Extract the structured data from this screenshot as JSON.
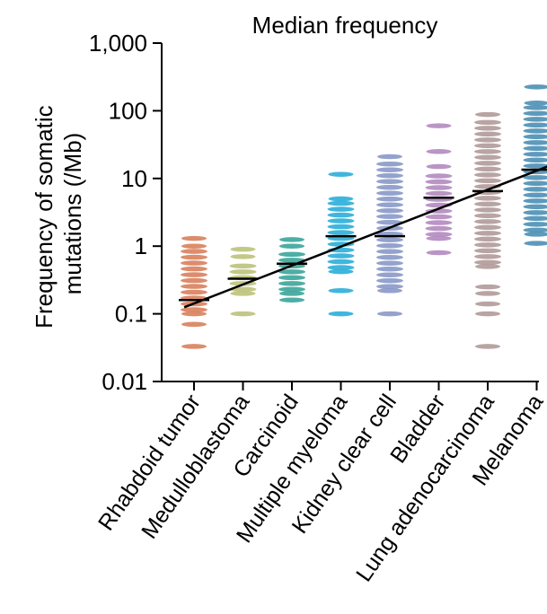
{
  "chart_data": {
    "type": "scatter",
    "title": "Median frequency",
    "ylabel_lines": [
      "Frequency of somatic",
      "mutations (/Mb)"
    ],
    "yscale": "log",
    "ylim": [
      0.01,
      1000
    ],
    "yticks": [
      0.01,
      0.1,
      1,
      10,
      100,
      1000
    ],
    "ytick_labels": [
      "0.01",
      "0.1",
      "1",
      "10",
      "100",
      "1,000"
    ],
    "categories": [
      "Rhabdoid tumor",
      "Medulloblastoma",
      "Carcinoid",
      "Multiple myeloma",
      "Kidney clear cell",
      "Bladder",
      "Lung adenocarcinoma",
      "Melanoma"
    ],
    "series": [
      {
        "color": "#d9805c",
        "median": 0.16,
        "min": 0.033,
        "max": 1.3,
        "outliers": [
          0.033,
          0.07,
          0.1,
          1.0,
          1.3
        ]
      },
      {
        "color": "#bcc27a",
        "median": 0.33,
        "min": 0.1,
        "max": 0.9,
        "outliers": [
          0.1,
          0.2,
          0.7,
          0.9
        ]
      },
      {
        "color": "#3aa59a",
        "median": 0.55,
        "min": 0.16,
        "max": 1.25,
        "outliers": [
          0.16,
          0.2,
          1.0,
          1.25
        ]
      },
      {
        "color": "#2aaed9",
        "median": 1.4,
        "min": 0.1,
        "max": 11.5,
        "outliers": [
          0.1,
          0.22,
          0.42,
          5.0,
          11.5
        ]
      },
      {
        "color": "#8898c8",
        "median": 1.4,
        "min": 0.1,
        "max": 21,
        "outliers": [
          0.1,
          0.22,
          21
        ]
      },
      {
        "color": "#b289bf",
        "median": 5.2,
        "min": 0.8,
        "max": 60,
        "outliers": [
          0.8,
          1.3,
          15,
          25,
          60
        ]
      },
      {
        "color": "#b09a99",
        "median": 6.5,
        "min": 0.033,
        "max": 88,
        "outliers": [
          0.033,
          0.1,
          0.14,
          0.2,
          0.25,
          0.5,
          88
        ]
      },
      {
        "color": "#4b8fb5",
        "median": 13.5,
        "min": 1.1,
        "max": 225,
        "outliers": [
          1.1,
          1.5,
          130,
          225
        ]
      }
    ],
    "trend_arrow": {
      "x_start": 0.35,
      "y_start": 0.125,
      "x_end": 8.5,
      "y_end": 25
    }
  }
}
